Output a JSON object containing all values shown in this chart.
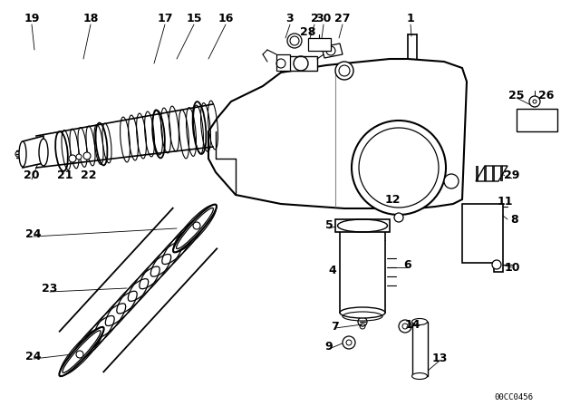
{
  "background_color": "#ffffff",
  "diagram_code": "00CC0456",
  "line_color": "#000000",
  "label_fontsize": 9
}
